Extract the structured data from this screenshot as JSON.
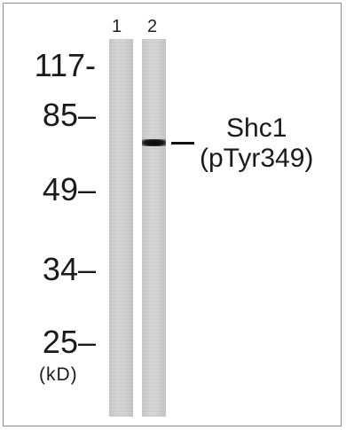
{
  "lanes": [
    {
      "number": "1"
    },
    {
      "number": "2"
    }
  ],
  "markers": [
    {
      "label": "117-"
    },
    {
      "label": "85–"
    },
    {
      "label": "49–"
    },
    {
      "label": "34–"
    },
    {
      "label": "25–"
    }
  ],
  "unit_label": "(kD)",
  "band_annotation": {
    "line1": "Shc1",
    "line2": "(pTyr349)"
  }
}
